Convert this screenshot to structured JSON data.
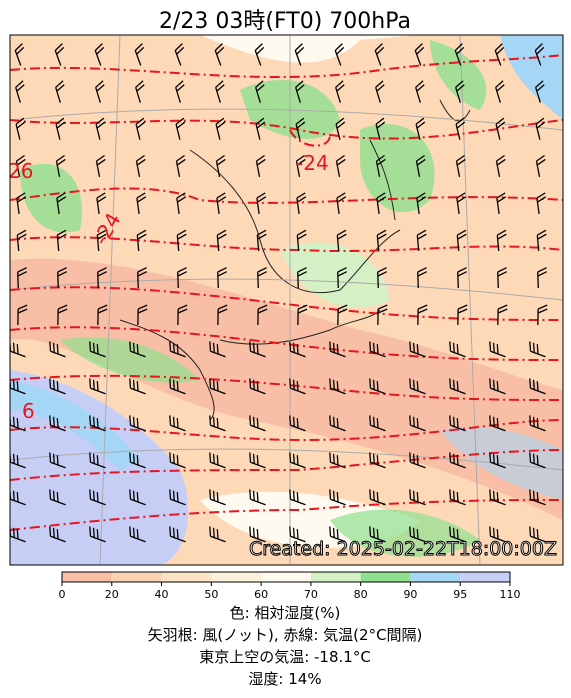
{
  "header": {
    "title": "2/23  03時(FT0)     700hPa"
  },
  "map": {
    "contour_labels": [
      "26",
      "-24",
      "-24",
      "6"
    ],
    "stamp": "Created: 2025-02-22T18:00:00Z"
  },
  "colorbar": {
    "ticks": [
      0,
      20,
      40,
      50,
      60,
      70,
      80,
      90,
      95,
      110
    ],
    "colors": [
      "#f8bfa6",
      "#fbd3b4",
      "#fde3c6",
      "#fdf0dc",
      "#fffaf0",
      "#d6f0c6",
      "#8ee08e",
      "#a6d6f6",
      "#c6cef6"
    ]
  },
  "caption": {
    "lines": [
      "色: 相対湿度(%)",
      "矢羽根: 風(ノット), 赤線: 気温(2°C間隔)",
      "東京上空の気温: -18.1°C",
      "湿度: 14%"
    ]
  }
}
